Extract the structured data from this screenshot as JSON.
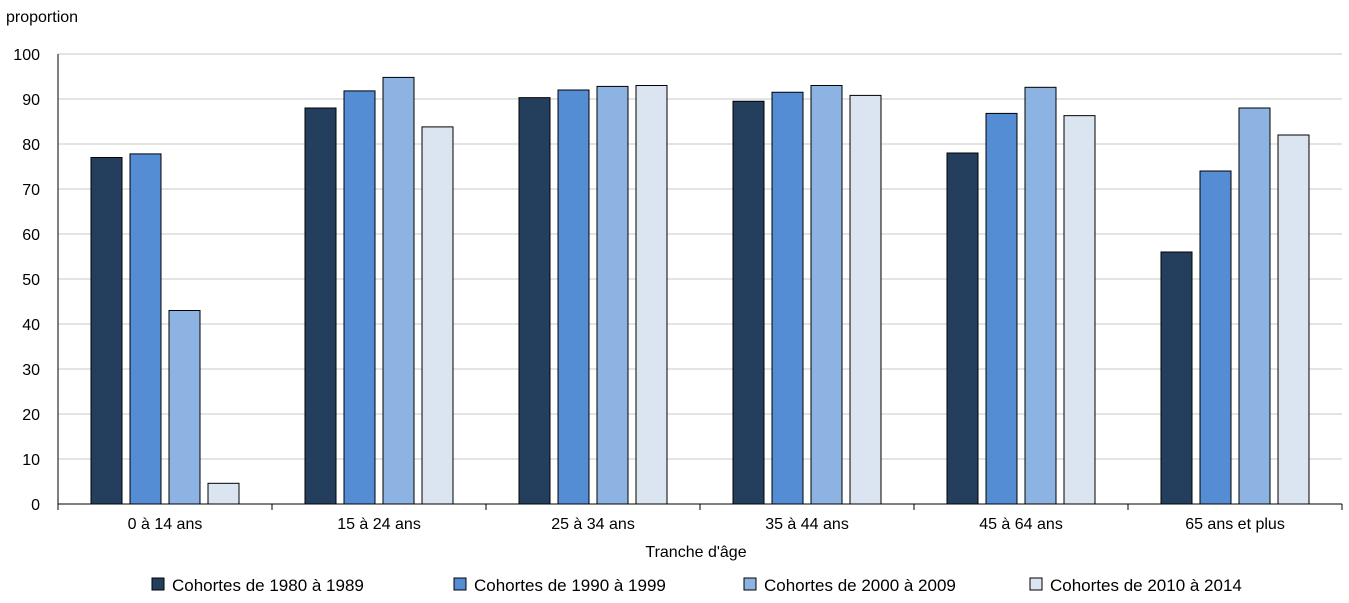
{
  "chart_data": {
    "type": "bar",
    "title": "",
    "ylabel": "proportion",
    "xlabel": "Tranche d'âge",
    "ylim": [
      0,
      100
    ],
    "yticks": [
      0,
      10,
      20,
      30,
      40,
      50,
      60,
      70,
      80,
      90,
      100
    ],
    "grid": true,
    "legend_position": "bottom",
    "categories": [
      "0 à 14 ans",
      "15 à 24 ans",
      "25 à 34 ans",
      "35 à 44 ans",
      "45 à 64 ans",
      "65 ans et plus"
    ],
    "series": [
      {
        "name": "Cohortes de 1980 à 1989",
        "color": "#243f5e",
        "values": [
          77,
          88,
          90.3,
          89.5,
          78,
          56
        ]
      },
      {
        "name": "Cohortes de 1990 à 1999",
        "color": "#548dd4",
        "values": [
          77.8,
          91.8,
          92,
          91.5,
          86.8,
          74
        ]
      },
      {
        "name": "Cohortes de 2000 à 2009",
        "color": "#8db3e2",
        "values": [
          43,
          94.8,
          92.8,
          93,
          92.6,
          88
        ]
      },
      {
        "name": "Cohortes de 2010 à 2014",
        "color": "#dbe5f1",
        "values": [
          4.6,
          83.8,
          93,
          90.8,
          86.3,
          82
        ]
      }
    ]
  }
}
